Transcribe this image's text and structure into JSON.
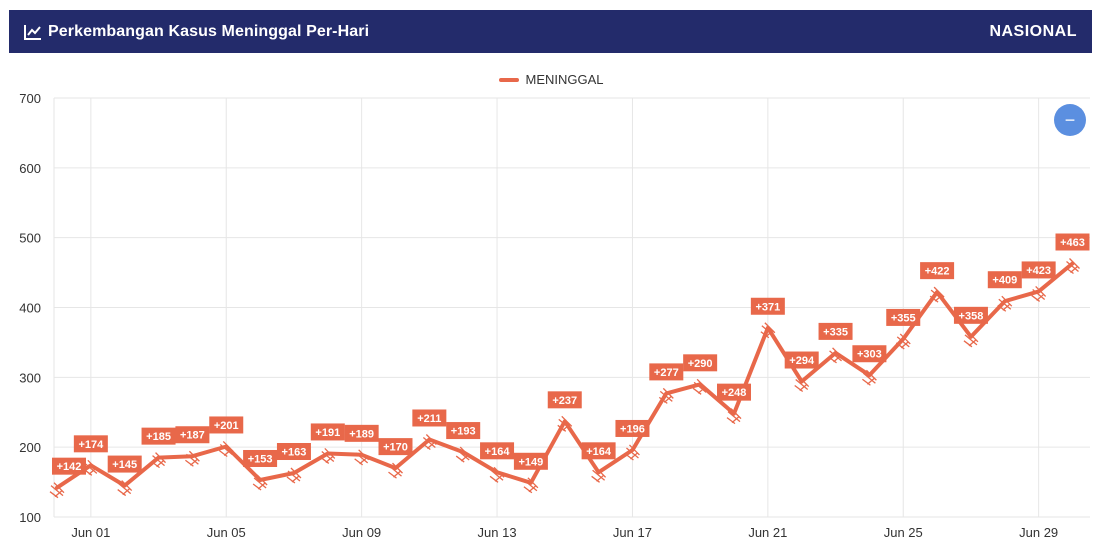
{
  "header": {
    "title": "Perkembangan Kasus Meninggal Per-Hari",
    "scope": "NASIONAL",
    "icon": "line-chart-icon"
  },
  "zoom_button": {
    "label": "−",
    "icon": "zoom-out-icon"
  },
  "colors": {
    "header_bg": "#232b6b",
    "series": "#e8684a",
    "grid": "#e6e6e6",
    "button": "#5b8fe0"
  },
  "chart_data": {
    "type": "line",
    "legend": [
      "MENINGGAL"
    ],
    "legend_position": "top-center",
    "grid": true,
    "ylim": [
      100,
      700
    ],
    "yticks": [
      100,
      200,
      300,
      400,
      500,
      600,
      700
    ],
    "xticks": [
      "Jun 01",
      "Jun 05",
      "Jun 09",
      "Jun 13",
      "Jun 17",
      "Jun 21",
      "Jun 25",
      "Jun 29"
    ],
    "x": [
      "May 31",
      "Jun 01",
      "Jun 02",
      "Jun 03",
      "Jun 04",
      "Jun 05",
      "Jun 06",
      "Jun 07",
      "Jun 08",
      "Jun 09",
      "Jun 10",
      "Jun 11",
      "Jun 12",
      "Jun 13",
      "Jun 14",
      "Jun 15",
      "Jun 16",
      "Jun 17",
      "Jun 18",
      "Jun 19",
      "Jun 20",
      "Jun 21",
      "Jun 22",
      "Jun 23",
      "Jun 24",
      "Jun 25",
      "Jun 26",
      "Jun 27",
      "Jun 28",
      "Jun 29",
      "Jun 30"
    ],
    "series": [
      {
        "name": "MENINGGAL",
        "values": [
          142,
          174,
          145,
          185,
          187,
          201,
          153,
          163,
          191,
          189,
          170,
          211,
          193,
          164,
          149,
          237,
          164,
          196,
          277,
          290,
          248,
          371,
          294,
          335,
          303,
          355,
          422,
          358,
          409,
          423,
          463
        ],
        "labels": [
          "+142",
          "+174",
          "+145",
          "+185",
          "+187",
          "+201",
          "+153",
          "+163",
          "+191",
          "+189",
          "+170",
          "+211",
          "+193",
          "+164",
          "+149",
          "+237",
          "+164",
          "+196",
          "+277",
          "+290",
          "+248",
          "+371",
          "+294",
          "+335",
          "+303",
          "+355",
          "+422",
          "+358",
          "+409",
          "+423",
          "+463"
        ]
      }
    ]
  }
}
